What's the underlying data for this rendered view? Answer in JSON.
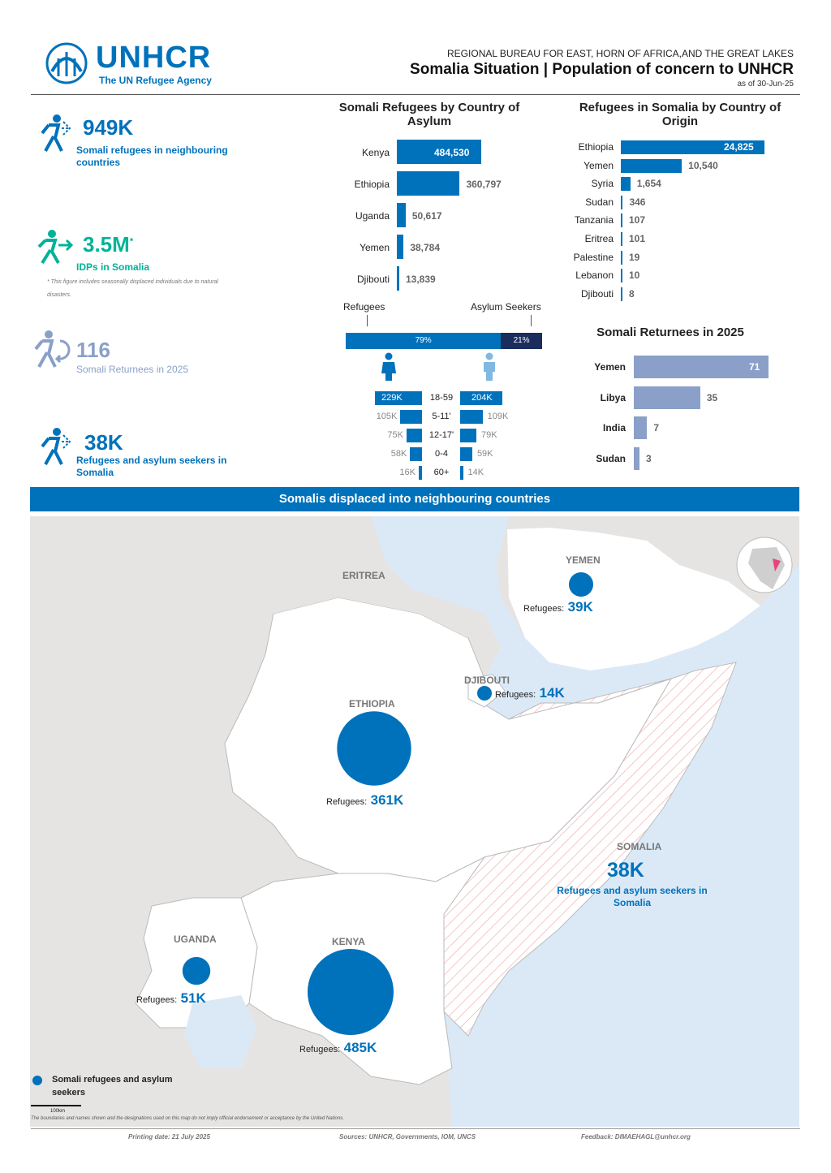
{
  "header": {
    "logo_text": "UNHCR",
    "logo_sub": "The UN Refugee Agency",
    "bureau": "REGIONAL BUREAU FOR EAST, HORN OF AFRICA,AND THE GREAT LAKES",
    "title": "Somalia Situation | Population of concern to UNHCR",
    "date": "as of 30-Jun-25"
  },
  "kpis": [
    {
      "value": "949K",
      "label": "Somali refugees in neighbouring countries",
      "icon": "refugee-running-icon"
    },
    {
      "value": "3.5M",
      "sup": "*",
      "label": "IDPs in Somalia",
      "note": "* This figure includes seasonally displaced individuals due to natural disasters.",
      "icon": "idp-running-icon"
    },
    {
      "value": "116",
      "label": "Somali Returnees in 2025",
      "icon": "returnee-icon"
    },
    {
      "value": "38K",
      "label": "Refugees and asylum seekers in Somalia",
      "icon": "refugee-running-icon"
    }
  ],
  "asylum_chart": {
    "title": "Somali Refugees by Country of Asylum",
    "items": [
      {
        "label": "Kenya",
        "value": 484530,
        "text": "484,530"
      },
      {
        "label": "Ethiopia",
        "value": 360797,
        "text": "360,797"
      },
      {
        "label": "Uganda",
        "value": 50617,
        "text": "50,617"
      },
      {
        "label": "Yemen",
        "value": 38784,
        "text": "38,784"
      },
      {
        "label": "Djibouti",
        "value": 13839,
        "text": "13,839"
      }
    ]
  },
  "origin_chart": {
    "title": "Refugees in Somalia by Country of Origin",
    "items": [
      {
        "label": "Ethiopia",
        "value": 24825,
        "text": "24,825"
      },
      {
        "label": "Yemen",
        "value": 10540,
        "text": "10,540"
      },
      {
        "label": "Syria",
        "value": 1654,
        "text": "1,654"
      },
      {
        "label": "Sudan",
        "value": 346,
        "text": "346"
      },
      {
        "label": "Tanzania",
        "value": 107,
        "text": "107"
      },
      {
        "label": "Eritrea",
        "value": 101,
        "text": "101"
      },
      {
        "label": "Palestine",
        "value": 19,
        "text": "19"
      },
      {
        "label": "Lebanon",
        "value": 10,
        "text": "10"
      },
      {
        "label": "Djibouti",
        "value": 8,
        "text": "8"
      }
    ]
  },
  "returnees_chart": {
    "title": "Somali Returnees in 2025",
    "items": [
      {
        "label": "Yemen",
        "value": 71,
        "text": "71"
      },
      {
        "label": "Libya",
        "value": 35,
        "text": "35"
      },
      {
        "label": "India",
        "value": 7,
        "text": "7"
      },
      {
        "label": "Sudan",
        "value": 3,
        "text": "3"
      }
    ]
  },
  "split": {
    "refugees_label": "Refugees",
    "asylum_label": "Asylum Seekers",
    "refugees_pct": 79,
    "asylum_pct": 21,
    "refugees_text": "79%",
    "asylum_text": "21%"
  },
  "pyramid": {
    "rows": [
      {
        "age": "18-59",
        "female": 229,
        "male": 204,
        "ftext": "229K",
        "mtext": "204K"
      },
      {
        "age": "5-11'",
        "female": 105,
        "male": 109,
        "ftext": "105K",
        "mtext": "109K"
      },
      {
        "age": "12-17'",
        "female": 75,
        "male": 79,
        "ftext": "75K",
        "mtext": "79K"
      },
      {
        "age": "0-4",
        "female": 58,
        "male": 59,
        "ftext": "58K",
        "mtext": "59K"
      },
      {
        "age": "60+",
        "female": 16,
        "male": 14,
        "ftext": "16K",
        "mtext": "14K"
      }
    ]
  },
  "map": {
    "banner": "Somalis displaced into neighbouring countries",
    "countries": {
      "eritrea": "ERITREA",
      "yemen": "YEMEN",
      "djibouti": "DJIBOUTI",
      "ethiopia": "ETHIOPIA",
      "somalia": "SOMALIA",
      "uganda": "UGANDA",
      "kenya": "KENYA"
    },
    "refugees_prefix": "Refugees:",
    "bubbles": [
      {
        "country": "Yemen",
        "value": 39,
        "text": "39K"
      },
      {
        "country": "Djibouti",
        "value": 14,
        "text": "14K"
      },
      {
        "country": "Ethiopia",
        "value": 361,
        "text": "361K"
      },
      {
        "country": "Uganda",
        "value": 51,
        "text": "51K"
      },
      {
        "country": "Kenya",
        "value": 485,
        "text": "485K"
      }
    ],
    "somalia_value": "38K",
    "somalia_label": "Refugees and asylum seekers in Somalia",
    "legend_label": "Somali refugees and asylum seekers",
    "scale": "100km",
    "disclaimer": "The boundaries and names shown and the designations used on this map do not imply official endorsement or acceptance by the United Nations."
  },
  "footer": {
    "printing": "Printing date: 21 July 2025",
    "sources": "Sources: UNHCR, Governments, IOM, UNCS",
    "feedback": "Feedback: DIMAEHAGL@unhcr.org"
  },
  "colors": {
    "primary": "#0072bc",
    "teal": "#00b398",
    "returnee": "#8aa0c8",
    "water": "#dbe9f7",
    "land": "#e6e4e2"
  }
}
